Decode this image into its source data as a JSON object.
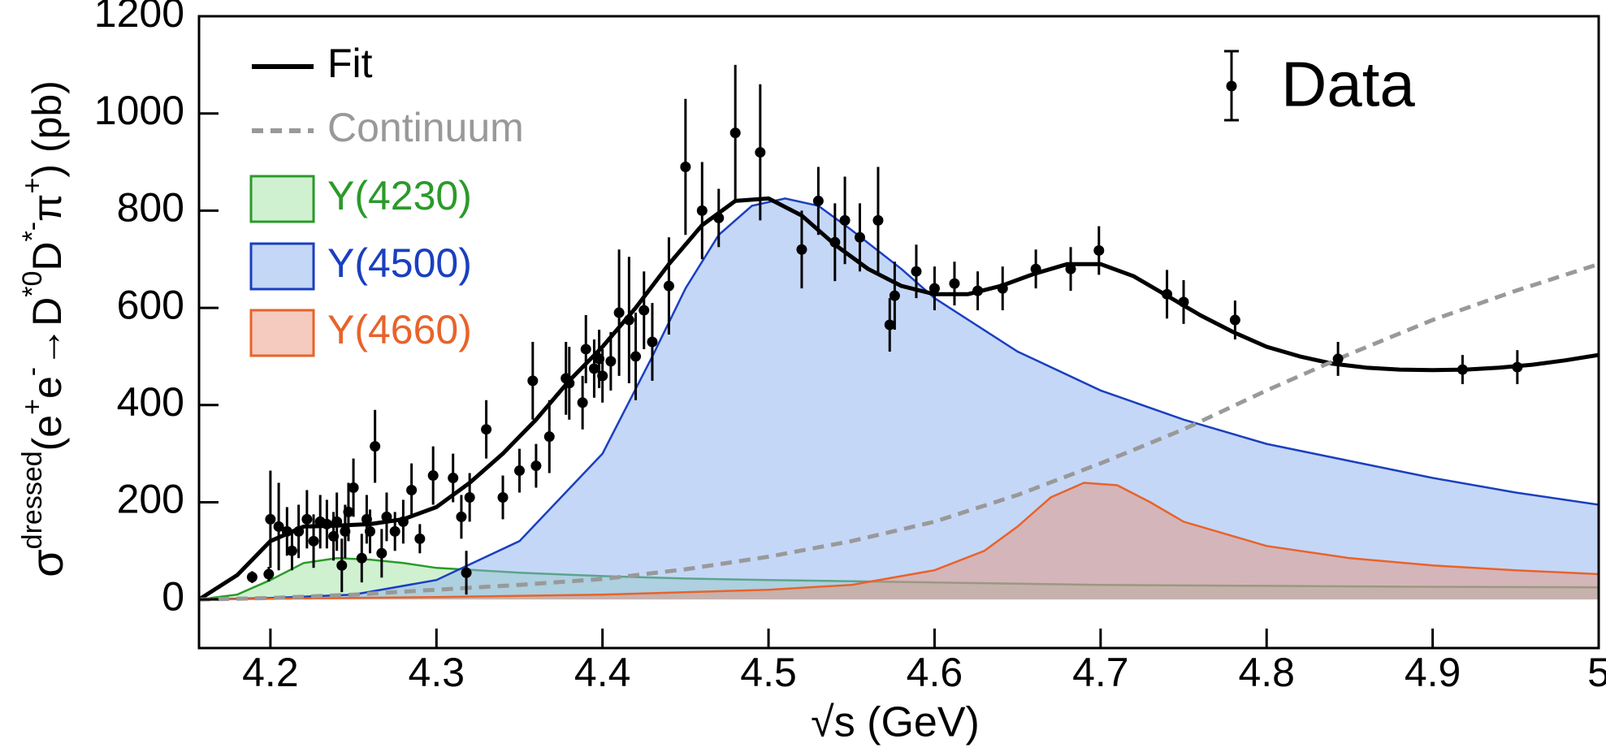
{
  "chart_data": {
    "type": "errorbar",
    "xlabel": "√s (GeV)",
    "ylabel": [
      "σ",
      "dressed",
      "(e",
      "+",
      "e",
      "-",
      "→D",
      "*0",
      "D",
      "*-",
      "π",
      "+",
      ") (pb)"
    ],
    "xlim": [
      4.157,
      5.0
    ],
    "ylim": [
      -100,
      1200
    ],
    "xticks": [
      4.2,
      4.3,
      4.4,
      4.5,
      4.6,
      4.7,
      4.8,
      4.9,
      5
    ],
    "yticks": [
      0,
      200,
      400,
      600,
      800,
      1000,
      1200
    ],
    "series": [
      {
        "name": "Fit",
        "type": "line",
        "color": "#000000",
        "dash": false,
        "x": [
          4.157,
          4.18,
          4.2,
          4.22,
          4.24,
          4.26,
          4.28,
          4.3,
          4.32,
          4.34,
          4.36,
          4.38,
          4.4,
          4.42,
          4.44,
          4.46,
          4.48,
          4.5,
          4.52,
          4.54,
          4.56,
          4.58,
          4.6,
          4.62,
          4.64,
          4.66,
          4.68,
          4.7,
          4.72,
          4.74,
          4.76,
          4.78,
          4.8,
          4.82,
          4.84,
          4.86,
          4.88,
          4.9,
          4.92,
          4.94,
          4.96,
          4.98,
          5.0
        ],
        "values": [
          0,
          50,
          120,
          150,
          152,
          155,
          165,
          190,
          240,
          300,
          370,
          450,
          520,
          600,
          690,
          770,
          820,
          825,
          790,
          730,
          680,
          645,
          628,
          628,
          645,
          670,
          690,
          690,
          665,
          625,
          585,
          550,
          520,
          500,
          485,
          477,
          473,
          472,
          473,
          477,
          483,
          492,
          503
        ]
      },
      {
        "name": "Continuum",
        "type": "line",
        "color": "#999999",
        "dash": true,
        "x": [
          4.157,
          4.2,
          4.25,
          4.3,
          4.35,
          4.4,
          4.45,
          4.5,
          4.55,
          4.6,
          4.65,
          4.7,
          4.75,
          4.8,
          4.85,
          4.9,
          4.95,
          5.0
        ],
        "values": [
          0,
          3,
          10,
          20,
          30,
          42,
          62,
          88,
          120,
          160,
          215,
          280,
          350,
          430,
          505,
          575,
          635,
          690
        ]
      },
      {
        "name": "Y(4230)",
        "type": "area",
        "color": "#2a9a2a",
        "fill": "rgba(150,225,150,0.45)",
        "x": [
          4.157,
          4.18,
          4.2,
          4.22,
          4.24,
          4.26,
          4.28,
          4.3,
          4.35,
          4.4,
          4.45,
          4.5,
          4.6,
          4.7,
          4.8,
          4.9,
          5.0
        ],
        "values": [
          0,
          10,
          40,
          75,
          85,
          82,
          75,
          65,
          55,
          48,
          43,
          40,
          35,
          30,
          28,
          26,
          25
        ]
      },
      {
        "name": "Y(4500)",
        "type": "area",
        "color": "#1a3fbf",
        "fill": "rgba(140,175,240,0.5)",
        "x": [
          4.157,
          4.2,
          4.25,
          4.3,
          4.35,
          4.4,
          4.43,
          4.45,
          4.47,
          4.49,
          4.51,
          4.53,
          4.55,
          4.58,
          4.6,
          4.65,
          4.7,
          4.75,
          4.8,
          4.85,
          4.9,
          4.95,
          5.0
        ],
        "values": [
          0,
          3,
          10,
          40,
          120,
          300,
          500,
          640,
          750,
          810,
          825,
          810,
          760,
          680,
          620,
          510,
          430,
          370,
          320,
          285,
          250,
          220,
          195
        ]
      },
      {
        "name": "Y(4660)",
        "type": "area",
        "color": "#e8632a",
        "fill": "rgba(230,140,110,0.45)",
        "x": [
          4.157,
          4.3,
          4.4,
          4.5,
          4.55,
          4.6,
          4.63,
          4.65,
          4.67,
          4.69,
          4.71,
          4.73,
          4.75,
          4.8,
          4.85,
          4.9,
          4.95,
          5.0
        ],
        "values": [
          0,
          5,
          10,
          20,
          30,
          60,
          100,
          150,
          210,
          240,
          235,
          200,
          160,
          110,
          85,
          70,
          60,
          52
        ]
      },
      {
        "name": "Data",
        "type": "errorbar",
        "color": "#000000",
        "x": [
          4.189,
          4.199,
          4.2,
          4.205,
          4.21,
          4.213,
          4.217,
          4.222,
          4.226,
          4.23,
          4.234,
          4.238,
          4.24,
          4.243,
          4.245,
          4.247,
          4.25,
          4.255,
          4.258,
          4.26,
          4.263,
          4.267,
          4.27,
          4.275,
          4.28,
          4.285,
          4.29,
          4.298,
          4.31,
          4.315,
          4.318,
          4.32,
          4.33,
          4.34,
          4.35,
          4.358,
          4.36,
          4.368,
          4.378,
          4.38,
          4.388,
          4.39,
          4.395,
          4.398,
          4.4,
          4.405,
          4.41,
          4.416,
          4.42,
          4.425,
          4.43,
          4.44,
          4.45,
          4.46,
          4.47,
          4.48,
          4.495,
          4.52,
          4.53,
          4.54,
          4.546,
          4.555,
          4.566,
          4.573,
          4.576,
          4.589,
          4.6,
          4.612,
          4.626,
          4.641,
          4.661,
          4.682,
          4.699,
          4.74,
          4.75,
          4.781,
          4.843,
          4.918,
          4.951
        ],
        "values": [
          46,
          52,
          165,
          150,
          140,
          100,
          140,
          165,
          120,
          160,
          155,
          130,
          160,
          70,
          140,
          180,
          230,
          85,
          165,
          140,
          315,
          95,
          170,
          140,
          160,
          225,
          125,
          255,
          250,
          170,
          55,
          210,
          350,
          210,
          265,
          450,
          275,
          335,
          455,
          445,
          405,
          515,
          475,
          495,
          460,
          490,
          590,
          575,
          500,
          595,
          530,
          645,
          890,
          800,
          785,
          960,
          920,
          720,
          820,
          735,
          780,
          745,
          780,
          565,
          625,
          675,
          640,
          650,
          635,
          640,
          680,
          680,
          718,
          628,
          612,
          575,
          495,
          473,
          478
        ],
        "errors": [
          12,
          15,
          100,
          90,
          50,
          40,
          55,
          60,
          55,
          55,
          50,
          50,
          60,
          55,
          55,
          60,
          60,
          50,
          50,
          45,
          75,
          50,
          50,
          40,
          45,
          55,
          30,
          60,
          50,
          45,
          45,
          50,
          60,
          45,
          45,
          80,
          45,
          75,
          75,
          75,
          55,
          70,
          60,
          60,
          55,
          60,
          130,
          130,
          90,
          80,
          80,
          100,
          140,
          100,
          60,
          140,
          140,
          80,
          70,
          80,
          90,
          70,
          110,
          55,
          70,
          55,
          45,
          45,
          40,
          45,
          40,
          45,
          50,
          50,
          45,
          40,
          35,
          30,
          35
        ]
      }
    ]
  }
}
